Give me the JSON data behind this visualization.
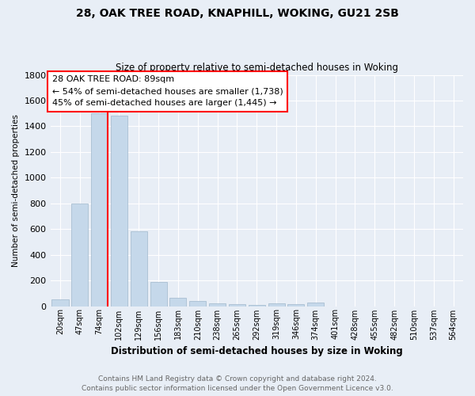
{
  "title": "28, OAK TREE ROAD, KNAPHILL, WOKING, GU21 2SB",
  "subtitle": "Size of property relative to semi-detached houses in Woking",
  "xlabel": "Distribution of semi-detached houses by size in Woking",
  "ylabel": "Number of semi-detached properties",
  "footer_line1": "Contains HM Land Registry data © Crown copyright and database right 2024.",
  "footer_line2": "Contains public sector information licensed under the Open Government Licence v3.0.",
  "categories": [
    "20sqm",
    "47sqm",
    "74sqm",
    "102sqm",
    "129sqm",
    "156sqm",
    "183sqm",
    "210sqm",
    "238sqm",
    "265sqm",
    "292sqm",
    "319sqm",
    "346sqm",
    "374sqm",
    "401sqm",
    "428sqm",
    "455sqm",
    "482sqm",
    "510sqm",
    "537sqm",
    "564sqm"
  ],
  "values": [
    50,
    800,
    1500,
    1480,
    580,
    190,
    65,
    40,
    20,
    15,
    10,
    20,
    15,
    25,
    0,
    0,
    0,
    0,
    0,
    0,
    0
  ],
  "bar_color": "#c5d8ea",
  "bar_edge_color": "#a0b8cc",
  "ylim": [
    0,
    1800
  ],
  "yticks": [
    0,
    200,
    400,
    600,
    800,
    1000,
    1200,
    1400,
    1600,
    1800
  ],
  "red_line_x": 2.425,
  "annotation_title": "28 OAK TREE ROAD: 89sqm",
  "annotation_line1": "← 54% of semi-detached houses are smaller (1,738)",
  "annotation_line2": "45% of semi-detached houses are larger (1,445) →",
  "bg_color": "#e8eef6",
  "plot_bg_color": "#e8eef6",
  "grid_color": "#ffffff",
  "title_fontsize": 10,
  "subtitle_fontsize": 8.5
}
